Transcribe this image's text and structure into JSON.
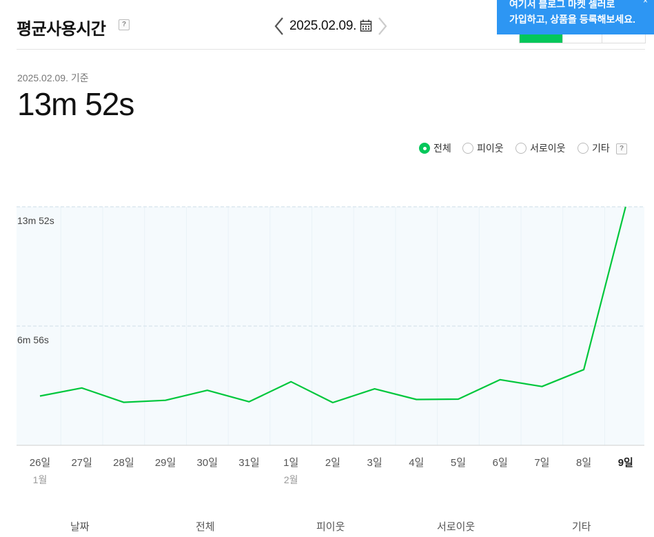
{
  "header": {
    "title": "평균사용시간",
    "help": "?",
    "date": "2025.02.09."
  },
  "promo": {
    "line1": "여기서 블로그 마켓 셀러로",
    "line2": "가입하고, 상품을 등록해보세요.",
    "close": "×"
  },
  "summary": {
    "reference": "2025.02.09. 기준",
    "value": "13m 52s"
  },
  "filters": {
    "all": "전체",
    "neighbor": "피이웃",
    "mutual": "서로이웃",
    "etc": "기타",
    "help": "?",
    "selected": "전체"
  },
  "colors": {
    "accent": "#03c75a",
    "line": "#00c73c",
    "plot_bg": "#f5fafd",
    "promo_bg": "#2d96f3"
  },
  "chart_data": {
    "type": "line",
    "categories": [
      "26일",
      "27일",
      "28일",
      "29일",
      "30일",
      "31일",
      "1일",
      "2일",
      "3일",
      "4일",
      "5일",
      "6일",
      "7일",
      "8일",
      "9일"
    ],
    "month_labels": [
      {
        "index": 0,
        "label": "1월"
      },
      {
        "index": 6,
        "label": "2월"
      }
    ],
    "highlight_index": 14,
    "series": [
      {
        "values": [
          172,
          200,
          150,
          157,
          192,
          152,
          222,
          149,
          197,
          160,
          161,
          229,
          205,
          264,
          832
        ]
      }
    ],
    "value_unit": "seconds",
    "ylim": [
      0,
      832
    ],
    "y_ticks": [
      {
        "value": 832,
        "label": "13m 52s"
      },
      {
        "value": 416,
        "label": "6m 56s"
      }
    ],
    "grid": true
  },
  "table": {
    "columns": [
      "날짜",
      "전체",
      "피이웃",
      "서로이웃",
      "기타"
    ]
  }
}
